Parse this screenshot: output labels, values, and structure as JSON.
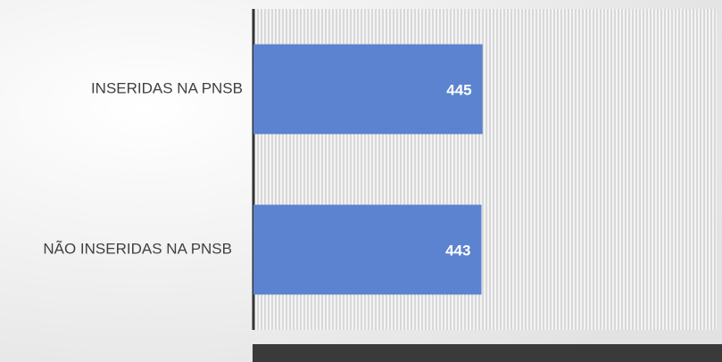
{
  "chart_data": {
    "type": "bar",
    "orientation": "horizontal",
    "categories": [
      "INSERIDAS NA PNSB",
      "NÃO INSERIDAS NA PNSB"
    ],
    "values": [
      445,
      443
    ],
    "color": "#5b83cf",
    "xlim": [
      0,
      900
    ]
  }
}
